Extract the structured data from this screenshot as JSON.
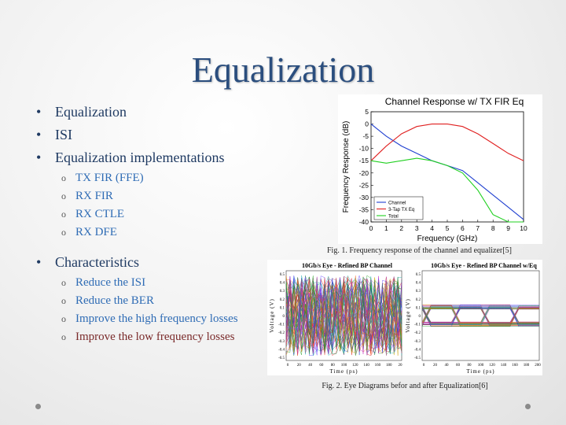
{
  "title": "Equalization",
  "bullets": [
    {
      "text": "Equalization"
    },
    {
      "text": "ISI"
    },
    {
      "text": "Equalization implementations",
      "sub": [
        "TX FIR (FFE)",
        "RX FIR",
        "RX CTLE",
        "RX DFE"
      ]
    },
    {
      "text": "Characteristics",
      "sub": [
        "Reduce the ISI",
        "Reduce the BER",
        "Improve the high frequency losses",
        "Improve the low frequency losses"
      ]
    }
  ],
  "colors": {
    "title": "#2b4e7e",
    "channel": "#1f3fd0",
    "txeq": "#e02020",
    "total": "#20d020"
  },
  "figure1": {
    "caption": "Fig. 1. Frequency response of the channel and equalizer[5]",
    "chart_data": {
      "type": "line",
      "title": "Channel Response w/ TX FIR Eq",
      "xlabel": "Frequency (GHz)",
      "ylabel": "Frequency Response (dB)",
      "xlim": [
        0,
        10
      ],
      "ylim": [
        -40,
        5
      ],
      "xticks": [
        "0",
        "1",
        "2",
        "3",
        "4",
        "5",
        "6",
        "7",
        "8",
        "9",
        "10"
      ],
      "yticks": [
        "5",
        "0",
        "-5",
        "-10",
        "-15",
        "-20",
        "-25",
        "-30",
        "-35",
        "-40"
      ],
      "series": [
        {
          "name": "Channel",
          "x": [
            0,
            1,
            2,
            3,
            4,
            5,
            6,
            7,
            8,
            9,
            10
          ],
          "y": [
            0,
            -5,
            -9,
            -12,
            -15,
            -17,
            -19,
            -24,
            -29,
            -34,
            -39
          ]
        },
        {
          "name": "3-Tap TX Eq",
          "x": [
            0,
            1,
            2,
            3,
            4,
            5,
            6,
            7,
            8,
            9,
            10
          ],
          "y": [
            -15,
            -9,
            -4,
            -1,
            0,
            0,
            -1,
            -4,
            -8,
            -12,
            -15
          ]
        },
        {
          "name": "Total",
          "x": [
            0,
            1,
            2,
            3,
            4,
            5,
            6,
            7,
            8,
            9,
            10
          ],
          "y": [
            -15,
            -16,
            -15,
            -14,
            -15,
            -17,
            -20,
            -27,
            -37,
            -40,
            -40
          ]
        }
      ]
    }
  },
  "figure2": {
    "caption": "Fig. 2. Eye Diagrams befor and after Equalization[6]",
    "left": {
      "title": "10Gb/s Eye - Refined BP Channel",
      "xlabel": "Time (ps)",
      "ylabel": "Voltage (V)",
      "xticks": [
        "0",
        "20",
        "40",
        "60",
        "80",
        "100",
        "120",
        "140",
        "160",
        "180",
        "20"
      ],
      "yticks": [
        "0.5",
        "0.4",
        "0.3",
        "0.2",
        "0.1",
        "0",
        "-0.1",
        "-0.2",
        "-0.3",
        "-0.4",
        "-0.5"
      ]
    },
    "right": {
      "title": "10Gb/s Eye - Refined BP Channel w/Eq",
      "xlabel": "Time (ps)",
      "ylabel": "Voltage (V)",
      "xticks": [
        "0",
        "20",
        "40",
        "60",
        "80",
        "100",
        "120",
        "140",
        "160",
        "180",
        "200"
      ],
      "yticks": [
        "0.5",
        "0.4",
        "0.3",
        "0.2",
        "0.1",
        "0",
        "-0.1",
        "-0.2",
        "-0.3",
        "-0.4",
        "-0.5"
      ]
    }
  }
}
